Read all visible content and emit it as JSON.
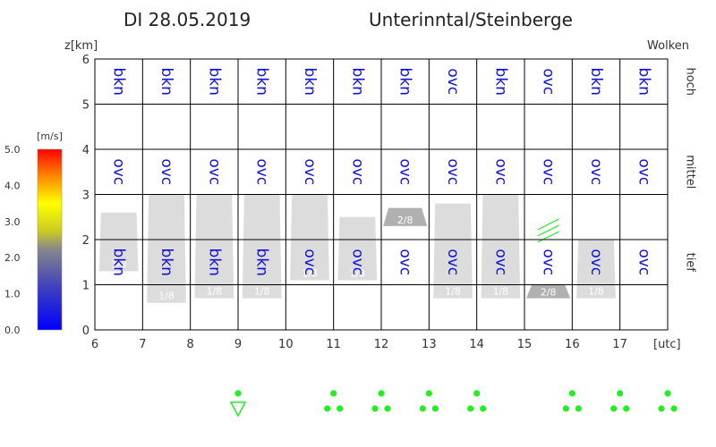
{
  "header": {
    "date": "DI 28.05.2019",
    "region": "Unterinntal/Steinberge"
  },
  "colors": {
    "cloud_code": "#1010e0",
    "cloud_block": "#dcdcdc",
    "fraction_block": "#b0b0b0",
    "grid": "#000000",
    "precip": "#22ee22"
  },
  "chart_data": {
    "type": "table",
    "xlabel": "[utc]",
    "ylabel": "z[km]",
    "xlim": [
      6,
      18
    ],
    "ylim": [
      0,
      6
    ],
    "x_ticks": [
      "6",
      "7",
      "8",
      "9",
      "10",
      "11",
      "12",
      "13",
      "14",
      "15",
      "16",
      "17"
    ],
    "y_ticks": [
      "0",
      "1",
      "2",
      "3",
      "4",
      "5",
      "6"
    ],
    "right_title": "Wolken",
    "levels": [
      "hoch",
      "mittel",
      "tief"
    ],
    "hours": [
      6.5,
      7.5,
      8.5,
      9.5,
      10.5,
      11.5,
      12.5,
      13.5,
      14.5,
      15.5,
      16.5,
      17.5
    ],
    "cover_high": [
      "bkn",
      "bkn",
      "bkn",
      "bkn",
      "bkn",
      "bkn",
      "bkn",
      "ovc",
      "bkn",
      "ovc",
      "bkn",
      "bkn"
    ],
    "cover_mid": [
      "ovc",
      "ovc",
      "ovc",
      "ovc",
      "ovc",
      "ovc",
      "ovc",
      "ovc",
      "ovc",
      "ovc",
      "ovc",
      "ovc"
    ],
    "cover_low": [
      "bkn",
      "bkn",
      "bkn",
      "bkn",
      "ovc",
      "ovc",
      "ovc",
      "ovc",
      "ovc",
      "ovc",
      "ovc",
      "ovc"
    ],
    "low_clouds": [
      {
        "hour": 6.5,
        "base": 1.3,
        "top": 2.6,
        "label": "1/8"
      },
      {
        "hour": 7.5,
        "base": 0.6,
        "top": 3.0,
        "label": "1/8"
      },
      {
        "hour": 8.5,
        "base": 0.7,
        "top": 3.0,
        "label": "1/8"
      },
      {
        "hour": 9.5,
        "base": 0.7,
        "top": 3.0,
        "label": "1/8"
      },
      {
        "hour": 10.5,
        "base": 1.1,
        "top": 3.0,
        "label": "1/8"
      },
      {
        "hour": 11.5,
        "base": 1.1,
        "top": 2.5,
        "label": "1/8"
      },
      {
        "hour": 13.5,
        "base": 0.7,
        "top": 2.8,
        "label": "1/8"
      },
      {
        "hour": 14.5,
        "base": 0.7,
        "top": 3.0,
        "label": "1/8"
      },
      {
        "hour": 16.5,
        "base": 0.7,
        "top": 2.0,
        "label": "1/8"
      }
    ],
    "fraction_clouds": [
      {
        "hour": 12.5,
        "base": 2.3,
        "top": 2.7,
        "label": "2/8"
      },
      {
        "hour": 15.5,
        "base": 0.7,
        "top": 1.0,
        "label": "2/8"
      }
    ],
    "wind_marks": [
      {
        "hour": 15.5,
        "z": 2.2
      }
    ],
    "colorbar": {
      "label": "[m/s]",
      "ticks": [
        "0.0",
        "1.0",
        "2.0",
        "3.0",
        "4.0",
        "5.0"
      ],
      "range": [
        0,
        5
      ]
    },
    "precipitation": [
      {
        "hour": 9,
        "symbol": "shower"
      },
      {
        "hour": 11,
        "symbol": "rain"
      },
      {
        "hour": 12,
        "symbol": "rain"
      },
      {
        "hour": 13,
        "symbol": "rain"
      },
      {
        "hour": 14,
        "symbol": "rain"
      },
      {
        "hour": 16,
        "symbol": "rain"
      },
      {
        "hour": 17,
        "symbol": "rain"
      },
      {
        "hour": 18,
        "symbol": "rain"
      }
    ]
  }
}
